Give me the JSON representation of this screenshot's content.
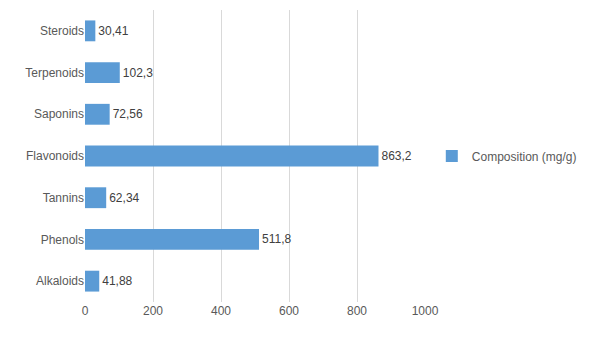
{
  "chart_data": {
    "type": "bar",
    "orientation": "horizontal",
    "categories": [
      "Alkaloids",
      "Phenols",
      "Tannins",
      "Flavonoids",
      "Saponins",
      "Terpenoids",
      "Steroids"
    ],
    "series": [
      {
        "name": "Composition (mg/g)",
        "color": "#5b9bd5",
        "values": [
          41.88,
          511.8,
          62.34,
          863.2,
          72.56,
          102.3,
          30.41
        ],
        "value_labels": [
          "41,88",
          "511,8",
          "62,34",
          "863,2",
          "72,56",
          "102,3",
          "30,41"
        ]
      }
    ],
    "xlim": [
      0,
      1000
    ],
    "xticks": [
      0,
      200,
      400,
      600,
      800,
      1000
    ],
    "grid": true,
    "data_labels": true,
    "legend": "right"
  }
}
